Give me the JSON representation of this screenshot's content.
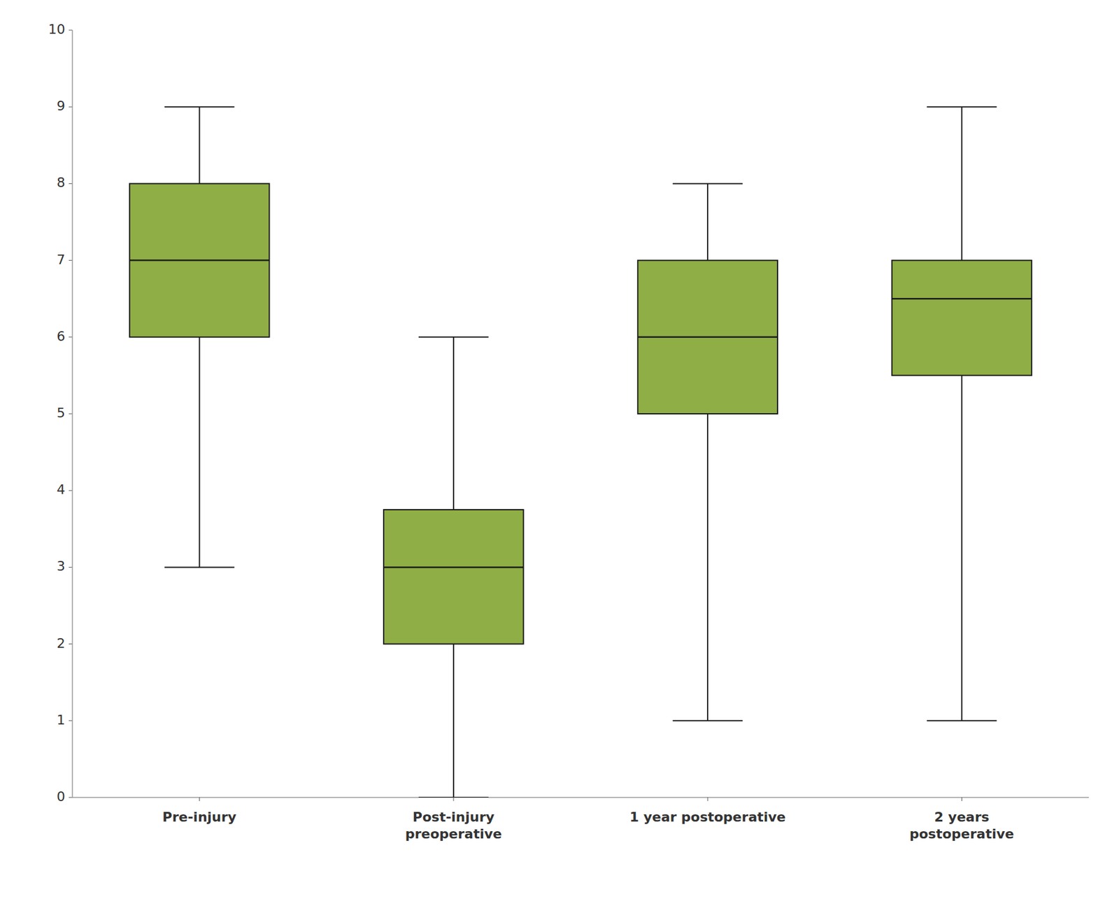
{
  "chart_data": {
    "type": "box",
    "categories": [
      "Pre-injury",
      "Post-injury\npreoperative",
      "1 year postoperative",
      "2 years\npostoperative"
    ],
    "boxes": [
      {
        "whisker_low": 3,
        "q1": 6,
        "median": 7,
        "q3": 8,
        "whisker_high": 9
      },
      {
        "whisker_low": 0,
        "q1": 2,
        "median": 3,
        "q3": 3.75,
        "whisker_high": 6
      },
      {
        "whisker_low": 1,
        "q1": 5,
        "median": 6,
        "q3": 7,
        "whisker_high": 8
      },
      {
        "whisker_low": 1,
        "q1": 5.5,
        "median": 6.5,
        "q3": 7,
        "whisker_high": 9
      }
    ],
    "color": "#8fae45",
    "ylim": [
      0,
      10
    ],
    "yticks": [
      0,
      1,
      2,
      3,
      4,
      5,
      6,
      7,
      8,
      9,
      10
    ],
    "grid": false
  }
}
